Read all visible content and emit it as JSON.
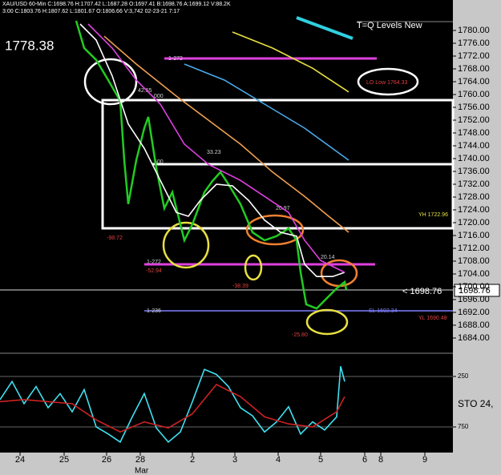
{
  "header": [
    "XAU/USD  60-Min  C:1698.76  H:1707.42  L:1687.28  O:1697.41  B:1698.76  A:1699.12  V:88.2K",
    "3:00  C:1803.76  H:1807.62  L:1801.67  O:1806.66  V:3,742  02-23-21  7:17"
  ],
  "price_label": "1778.38",
  "indicator_title": "T=Q Levels New",
  "current_price": "< 1698.76",
  "current_price_box": "1698.76",
  "x_sublabel": "Mar",
  "annotations": [
    "42.55",
    "33.23",
    "20.97",
    "20.14",
    "-98.72",
    "-52.94",
    "-38.39",
    "-25.80",
    "YH 1722.96",
    "LO Low 1764.33",
    "YL 1690.48",
    "1-272",
    "1-236",
    "SL 1692.34",
    ".500",
    ".000",
    "1-272"
  ],
  "chart_data": [
    {
      "type": "line",
      "ylim": [
        1679.5,
        1784.5
      ],
      "xlim": [
        0,
        112
      ],
      "yticks": [
        {
          "value": 1780,
          "label": "1780.00"
        },
        {
          "value": 1776,
          "label": "1776.00"
        },
        {
          "value": 1772,
          "label": "1772.00"
        },
        {
          "value": 1768,
          "label": "1768.00"
        },
        {
          "value": 1764,
          "label": "1764.00"
        },
        {
          "value": 1760,
          "label": "1760.00"
        },
        {
          "value": 1756,
          "label": "1756.00"
        },
        {
          "value": 1752,
          "label": "1752.00"
        },
        {
          "value": 1748,
          "label": "1748.00"
        },
        {
          "value": 1744,
          "label": "1744.00"
        },
        {
          "value": 1740,
          "label": "1740.00"
        },
        {
          "value": 1736,
          "label": "1736.00"
        },
        {
          "value": 1732,
          "label": "1732.00"
        },
        {
          "value": 1728,
          "label": "1728.00"
        },
        {
          "value": 1724,
          "label": "1724.00"
        },
        {
          "value": 1720,
          "label": "1720.00"
        },
        {
          "value": 1716,
          "label": "1716.00"
        },
        {
          "value": 1712,
          "label": "1712.00"
        },
        {
          "value": 1708,
          "label": "1708.00"
        },
        {
          "value": 1704,
          "label": "1704.00"
        },
        {
          "value": 1700,
          "label": "1700.00"
        },
        {
          "value": 1696,
          "label": "1696.00"
        },
        {
          "value": 1692,
          "label": "1692.00"
        },
        {
          "value": 1688,
          "label": "1688.00"
        },
        {
          "value": 1684,
          "label": "1684.00"
        }
      ],
      "xticks": [
        {
          "value": 5,
          "label": "24"
        },
        {
          "value": 16,
          "label": "25"
        },
        {
          "value": 26.6,
          "label": "26"
        },
        {
          "value": 35,
          "label": "28"
        },
        {
          "value": 48,
          "label": "2"
        },
        {
          "value": 58.6,
          "label": "3"
        },
        {
          "value": 69.4,
          "label": "4"
        },
        {
          "value": 80,
          "label": "5"
        },
        {
          "value": 91,
          "label": "6"
        },
        {
          "value": 95,
          "label": "8"
        },
        {
          "value": 106,
          "label": "9"
        }
      ],
      "series": [
        {
          "color": "#22cc22",
          "x": [
            19,
            21,
            24,
            27,
            30,
            31,
            32,
            34,
            36,
            37,
            39,
            41,
            43,
            46,
            48,
            51,
            53,
            55,
            57,
            60,
            63,
            66,
            69,
            72,
            74,
            75,
            76.4,
            79,
            82,
            84,
            86,
            86.4
          ],
          "values": [
            1783,
            1774.5,
            1770.8,
            1764.5,
            1758,
            1739.5,
            1725.8,
            1739.5,
            1749.5,
            1753,
            1737,
            1724.5,
            1729.5,
            1714.5,
            1719.5,
            1729.5,
            1733,
            1735.8,
            1732,
            1725.8,
            1717,
            1714.5,
            1715.8,
            1718.2,
            1714.5,
            1704.5,
            1694.5,
            1693.2,
            1697,
            1699.5,
            1701.5,
            1699
          ]
        },
        {
          "color": "#ffffff",
          "x": [
            20,
            24,
            28,
            32,
            36,
            40,
            44,
            47,
            50,
            54,
            58,
            62,
            66,
            70,
            74,
            76,
            79,
            83,
            86
          ],
          "values": [
            1782,
            1777,
            1765.8,
            1750.8,
            1743.2,
            1733.2,
            1723.2,
            1722,
            1727,
            1732,
            1731.5,
            1727,
            1720.8,
            1717,
            1715.8,
            1707,
            1703.2,
            1703.2,
            1704.5
          ]
        },
        {
          "color": "#e040e0",
          "x": [
            22,
            28,
            34,
            40,
            46,
            52,
            60,
            66,
            72,
            76,
            80,
            86
          ],
          "values": [
            1782,
            1774.5,
            1764.5,
            1757,
            1744.5,
            1738.2,
            1733.2,
            1728.2,
            1723.2,
            1714.5,
            1708.2,
            1704.5
          ]
        },
        {
          "color": "#f0a050",
          "x": [
            26,
            34,
            44,
            52,
            60,
            68,
            76,
            82,
            87
          ],
          "values": [
            1778.2,
            1769.5,
            1759.5,
            1752,
            1744.5,
            1735.8,
            1728.2,
            1722,
            1717
          ]
        },
        {
          "color": "#4aa8e8",
          "x": [
            46,
            56,
            66,
            76,
            87
          ],
          "values": [
            1769.5,
            1764.5,
            1757,
            1749.5,
            1739.5
          ]
        },
        {
          "color": "#e8e040",
          "x": [
            58,
            68,
            78,
            87
          ],
          "values": [
            1779.5,
            1774.5,
            1768.2,
            1760.8
          ]
        }
      ]
    },
    {
      "type": "line",
      "title": "STO  24,",
      "ylim": [
        1004,
        36
      ],
      "xlim": [
        0,
        112
      ],
      "yticks": [
        250,
        750
      ],
      "series": [
        {
          "color": "#40e0f0",
          "x": [
            0,
            3,
            6,
            9,
            12,
            15,
            18,
            21,
            24,
            27,
            30,
            33,
            36,
            39,
            42,
            45,
            48,
            51,
            54,
            57,
            60,
            63,
            66,
            69,
            72,
            75,
            78,
            81,
            84,
            85,
            86
          ],
          "values": [
            480,
            300,
            520,
            350,
            560,
            420,
            600,
            380,
            750,
            820,
            900,
            650,
            420,
            760,
            900,
            800,
            500,
            180,
            230,
            350,
            560,
            640,
            800,
            700,
            550,
            820,
            700,
            780,
            650,
            150,
            300
          ]
        },
        {
          "color": "#cc2222",
          "x": [
            0,
            6,
            12,
            18,
            24,
            30,
            36,
            42,
            48,
            54,
            60,
            66,
            72,
            78,
            84,
            86
          ],
          "values": [
            500,
            480,
            500,
            520,
            680,
            800,
            700,
            760,
            620,
            330,
            450,
            650,
            720,
            750,
            600,
            450
          ]
        }
      ]
    }
  ]
}
